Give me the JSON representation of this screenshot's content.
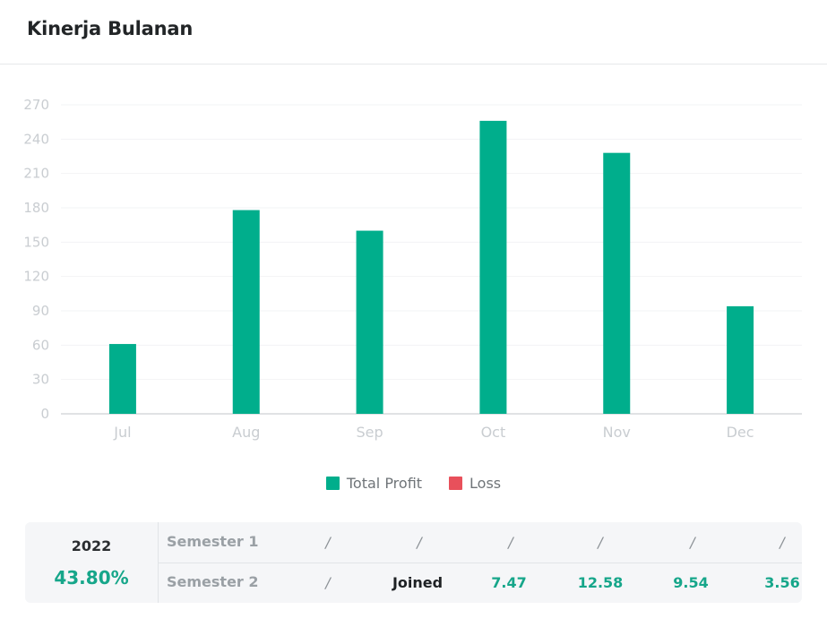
{
  "header": {
    "title": "Kinerja Bulanan"
  },
  "colors": {
    "accent": "#00AE8C",
    "loss": "#E8505B",
    "axis_text": "#C9CDD1",
    "grid": "#F2F3F5"
  },
  "chart_data": {
    "type": "bar",
    "categories": [
      "Jul",
      "Aug",
      "Sep",
      "Oct",
      "Nov",
      "Dec"
    ],
    "series": [
      {
        "name": "Total Profit",
        "values": [
          61,
          178,
          160,
          256,
          228,
          94
        ]
      },
      {
        "name": "Loss",
        "values": [
          0,
          0,
          0,
          0,
          0,
          0
        ]
      }
    ],
    "y_ticks": [
      0,
      30,
      60,
      90,
      120,
      150,
      180,
      210,
      240,
      270
    ],
    "ylim": [
      0,
      270
    ],
    "grid": true,
    "legend_position": "bottom-center",
    "xlabel": "",
    "ylabel": ""
  },
  "legend": {
    "items": [
      {
        "label": "Total Profit",
        "color": "#00AE8C"
      },
      {
        "label": "Loss",
        "color": "#E8505B"
      }
    ]
  },
  "summary": {
    "year": "2022",
    "percent": "43.80%",
    "semesters": [
      {
        "label": "Semester 1",
        "cells": [
          "/",
          "/",
          "/",
          "/",
          "/",
          "/"
        ]
      },
      {
        "label": "Semester 2",
        "cells": [
          "/",
          "Joined",
          "7.47",
          "12.58",
          "9.54",
          "3.56"
        ]
      }
    ]
  }
}
